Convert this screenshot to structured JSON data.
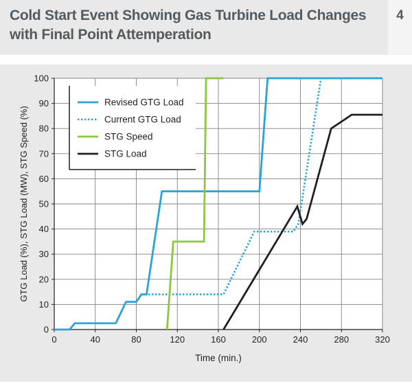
{
  "header": {
    "title": "Cold Start Event Showing Gas Turbine Load Changes with Final Point Attemperation",
    "figure_number": "4"
  },
  "colors": {
    "header_bg": "#e9e9ea",
    "panel_bg": "#e9e9ea",
    "text": "#555a5e"
  },
  "chart_data": {
    "type": "line",
    "xlabel": "Time (min.)",
    "ylabel": "GTG Load (%), STG Load (MW), STG Speed (%)",
    "xlim": [
      0,
      320
    ],
    "ylim": [
      0,
      100
    ],
    "xticks": [
      0,
      40,
      80,
      120,
      160,
      200,
      240,
      280,
      320
    ],
    "yticks": [
      0,
      10,
      20,
      30,
      40,
      50,
      60,
      70,
      80,
      90,
      100
    ],
    "grid": true,
    "legend_position": "top-left",
    "series": [
      {
        "name": "Revised GTG Load",
        "color": "#29a3d8",
        "style": "solid",
        "x": [
          0,
          15,
          20,
          60,
          70,
          80,
          85,
          90,
          105,
          200,
          208,
          320
        ],
        "y": [
          0,
          0,
          2.5,
          2.5,
          11,
          11,
          14,
          14,
          55,
          55,
          100,
          100
        ]
      },
      {
        "name": "Current GTG Load",
        "color": "#29a3d8",
        "style": "dotted",
        "x": [
          85,
          165,
          195,
          233,
          238,
          260
        ],
        "y": [
          14,
          14,
          39,
          39,
          42,
          100
        ]
      },
      {
        "name": "STG Speed",
        "color": "#8dc63f",
        "style": "solid",
        "x": [
          110,
          116,
          146,
          148,
          152,
          165
        ],
        "y": [
          0,
          35,
          35,
          100,
          100,
          100
        ]
      },
      {
        "name": "STG Load",
        "color": "#231f20",
        "style": "solid",
        "x": [
          165,
          237,
          242,
          246,
          270,
          290,
          320
        ],
        "y": [
          0,
          49,
          42,
          44,
          80,
          85.5,
          85.5
        ]
      }
    ]
  }
}
